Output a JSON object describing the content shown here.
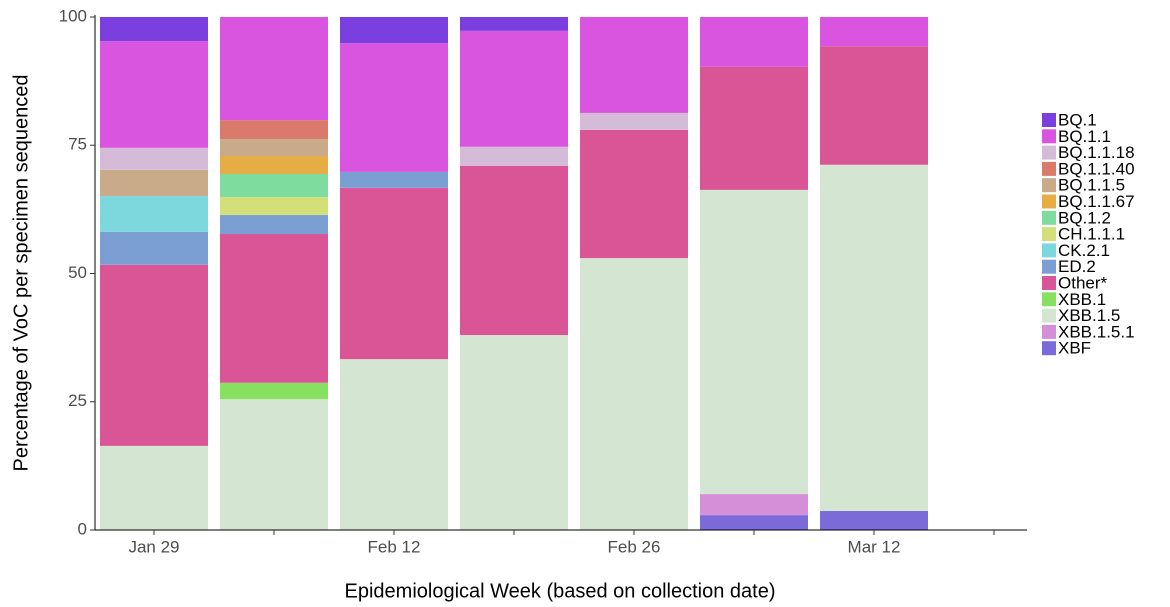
{
  "chart_data": {
    "type": "stacked_bar",
    "x_label": "Epidemiological Week (based on collection date)",
    "y_label": "Percentage of VoC per specimen sequenced",
    "categories": [
      "Jan 29",
      null,
      "Feb 12",
      null,
      "Feb 26",
      null,
      "Mar 12",
      null
    ],
    "ylim": [
      0,
      100
    ],
    "yticks": [
      0,
      25,
      50,
      75,
      100
    ],
    "series": [
      {
        "name": "BQ.1",
        "color": "#7b3fe0",
        "values": [
          4.7,
          null,
          5.1,
          2.7,
          null,
          null,
          null,
          null
        ]
      },
      {
        "name": "BQ.1.1",
        "color": "#d955e0",
        "values": [
          20.8,
          20.1,
          25.1,
          22.6,
          18.7,
          9.7,
          5.7,
          null
        ]
      },
      {
        "name": "BQ.1.1.18",
        "color": "#d4bcd8",
        "values": [
          4.3,
          null,
          null,
          3.7,
          3.3,
          null,
          null,
          null
        ]
      },
      {
        "name": "BQ.1.1.40",
        "color": "#d97a6c",
        "values": [
          null,
          3.7,
          null,
          null,
          null,
          null,
          null,
          null
        ]
      },
      {
        "name": "BQ.1.1.5",
        "color": "#c9ab8a",
        "values": [
          5.1,
          3.3,
          null,
          null,
          null,
          null,
          null,
          null
        ]
      },
      {
        "name": "BQ.1.1.67",
        "color": "#e6ad45",
        "values": [
          null,
          3.5,
          null,
          null,
          null,
          null,
          null,
          null
        ]
      },
      {
        "name": "BQ.1.2",
        "color": "#7ddc9e",
        "values": [
          null,
          4.5,
          null,
          null,
          null,
          null,
          null,
          null
        ]
      },
      {
        "name": "CH.1.1.1",
        "color": "#d3e07a",
        "values": [
          null,
          3.5,
          null,
          null,
          null,
          null,
          null,
          null
        ]
      },
      {
        "name": "CK.2.1",
        "color": "#7dd8dd",
        "values": [
          7.0,
          null,
          null,
          null,
          null,
          null,
          null,
          null
        ]
      },
      {
        "name": "ED.2",
        "color": "#7b9fd3",
        "values": [
          6.4,
          3.7,
          3.1,
          null,
          null,
          null,
          null,
          null
        ]
      },
      {
        "name": "Other*",
        "color": "#d95596",
        "values": [
          35.3,
          29.0,
          33.4,
          33.0,
          25.0,
          24.0,
          23.1,
          null
        ]
      },
      {
        "name": "XBB.1",
        "color": "#88e060",
        "values": [
          null,
          3.2,
          null,
          null,
          null,
          null,
          null,
          null
        ]
      },
      {
        "name": "XBB.1.5",
        "color": "#d4e6d2",
        "values": [
          16.4,
          25.5,
          33.3,
          38.0,
          53.0,
          59.3,
          67.5,
          null
        ]
      },
      {
        "name": "XBB.1.5.1",
        "color": "#d58fd8",
        "values": [
          null,
          null,
          null,
          null,
          null,
          4.1,
          null,
          null
        ]
      },
      {
        "name": "XBF",
        "color": "#7a6bd8",
        "values": [
          null,
          null,
          null,
          null,
          null,
          2.9,
          3.7,
          null
        ]
      }
    ]
  }
}
